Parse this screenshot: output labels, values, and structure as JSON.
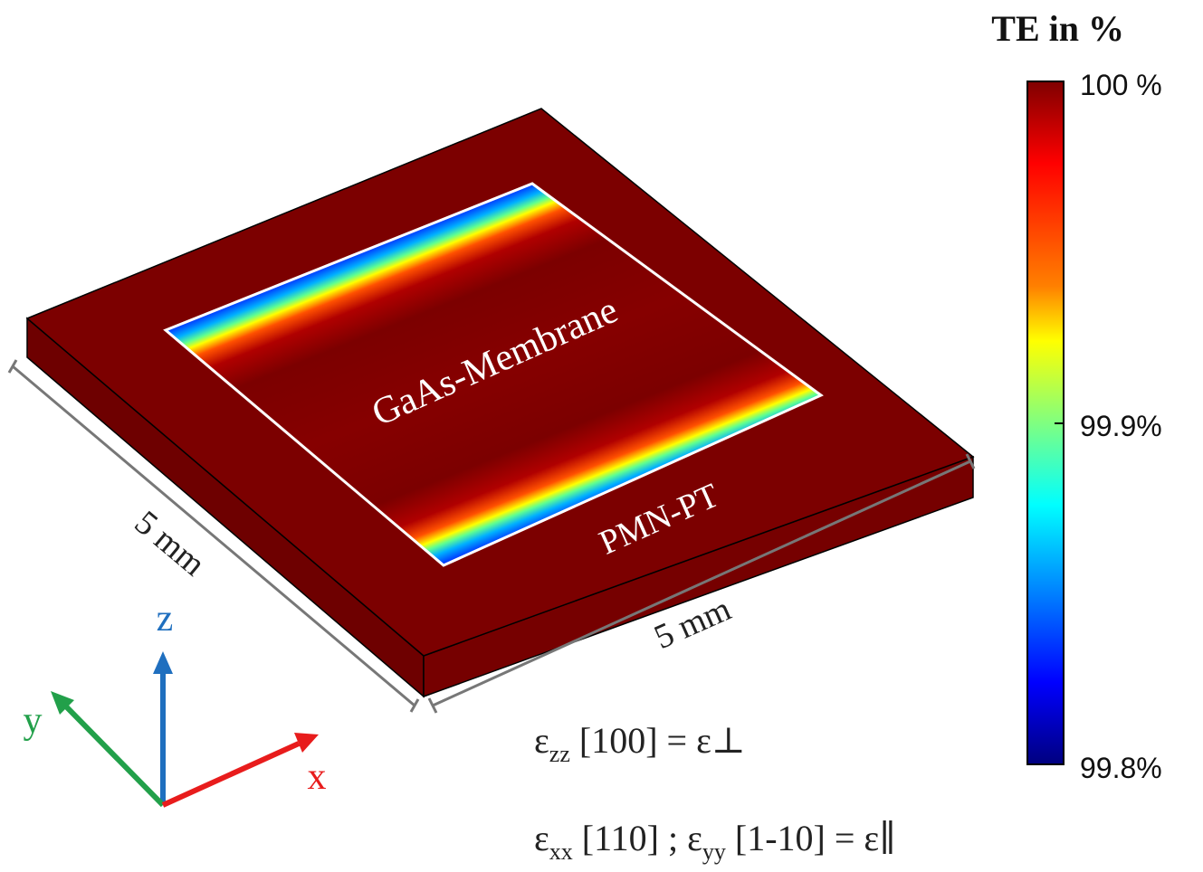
{
  "colorbar": {
    "title": "TE in %",
    "labels": [
      "100 %",
      "99.9%",
      "99.8%"
    ]
  },
  "labels": {
    "membrane": "GaAs-Membrane",
    "substrate": "PMN-PT",
    "width": "5 mm",
    "depth": "5 mm"
  },
  "axes": {
    "x": "x",
    "y": "y",
    "z": "z"
  },
  "equations": [
    [
      "ε",
      "zz",
      " [100] = ε⊥"
    ],
    [
      "ε",
      "xx",
      " [110] ; ε",
      "yy",
      " [1-10] = ε∥"
    ]
  ]
}
